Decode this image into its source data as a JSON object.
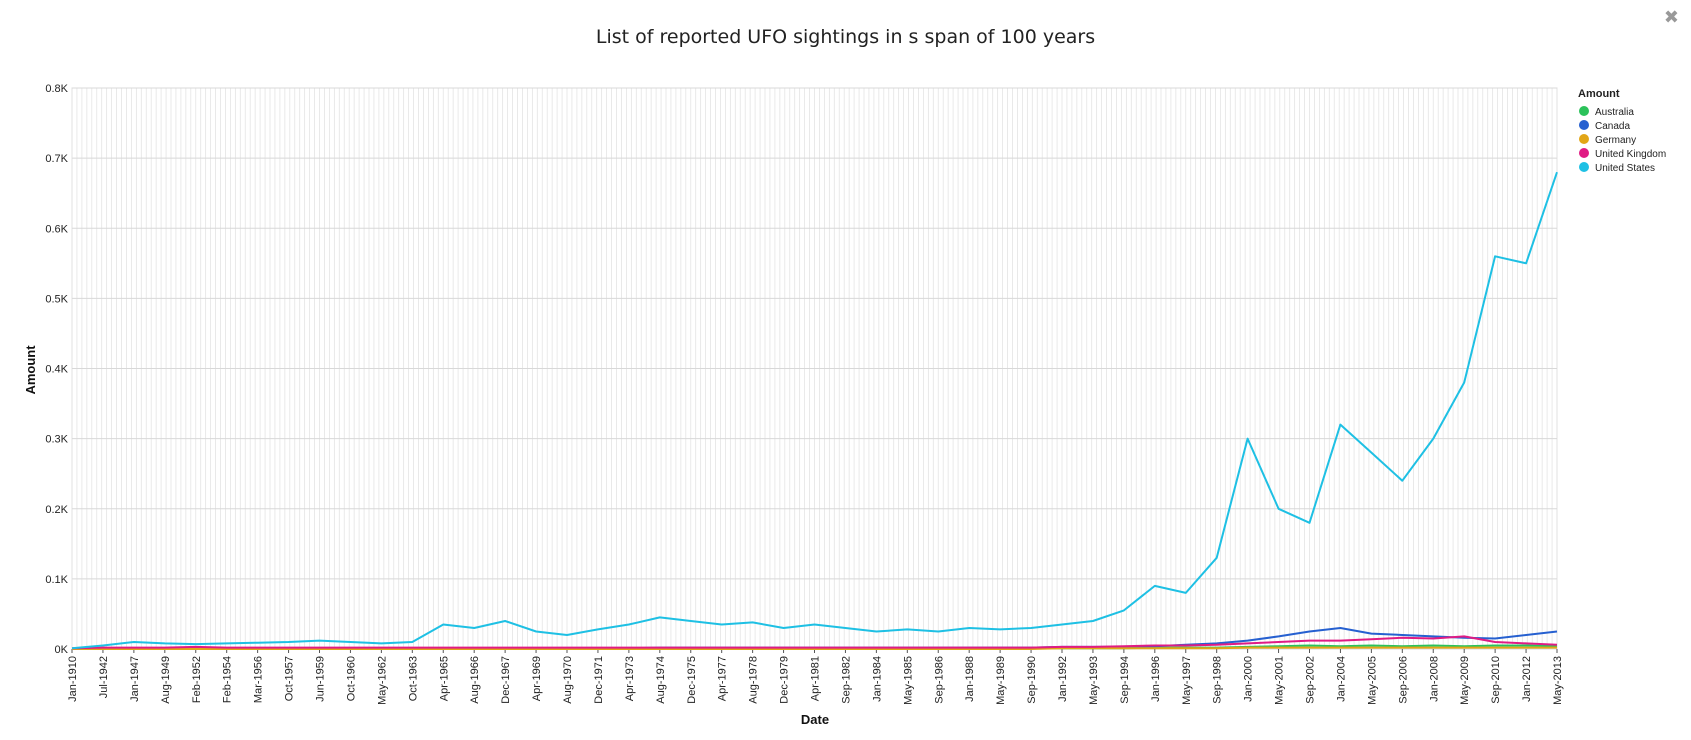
{
  "window": {
    "close_icon": "close-icon"
  },
  "chart_data": {
    "type": "line",
    "title": "List of reported UFO sightings in s span of 100 years",
    "xlabel": "Date",
    "ylabel": "Amount",
    "ylim": [
      0,
      800
    ],
    "yticks": [
      {
        "value": 0,
        "label": "0K"
      },
      {
        "value": 100,
        "label": "0.1K"
      },
      {
        "value": 200,
        "label": "0.2K"
      },
      {
        "value": 300,
        "label": "0.3K"
      },
      {
        "value": 400,
        "label": "0.4K"
      },
      {
        "value": 500,
        "label": "0.5K"
      },
      {
        "value": 600,
        "label": "0.6K"
      },
      {
        "value": 700,
        "label": "0.7K"
      },
      {
        "value": 800,
        "label": "0.8K"
      }
    ],
    "x": [
      "Jan-1910",
      "Jul-1942",
      "Jan-1947",
      "Aug-1949",
      "Feb-1952",
      "Feb-1954",
      "Mar-1956",
      "Oct-1957",
      "Jun-1959",
      "Oct-1960",
      "May-1962",
      "Oct-1963",
      "Apr-1965",
      "Aug-1966",
      "Dec-1967",
      "Apr-1969",
      "Aug-1970",
      "Dec-1971",
      "Apr-1973",
      "Aug-1974",
      "Dec-1975",
      "Apr-1977",
      "Aug-1978",
      "Dec-1979",
      "Apr-1981",
      "Sep-1982",
      "Jan-1984",
      "May-1985",
      "Sep-1986",
      "Jan-1988",
      "May-1989",
      "Sep-1990",
      "Jan-1992",
      "May-1993",
      "Sep-1994",
      "Jan-1996",
      "May-1997",
      "Sep-1998",
      "Jan-2000",
      "May-2001",
      "Sep-2002",
      "Jan-2004",
      "May-2005",
      "Sep-2006",
      "Jan-2008",
      "May-2009",
      "Sep-2010",
      "Jan-2012",
      "May-2013"
    ],
    "legend": {
      "title": "Amount",
      "position": "right"
    },
    "grid": true,
    "series": [
      {
        "name": "Australia",
        "color": "#2bc25a",
        "values": [
          0,
          0,
          0,
          0,
          0,
          0,
          0,
          0,
          0,
          0,
          0,
          0,
          0,
          0,
          0,
          0,
          0,
          0,
          0,
          0,
          0,
          0,
          0,
          0,
          0,
          0,
          0,
          0,
          0,
          0,
          1,
          1,
          1,
          1,
          1,
          2,
          2,
          2,
          3,
          4,
          5,
          4,
          5,
          4,
          5,
          4,
          5,
          5,
          4
        ]
      },
      {
        "name": "Canada",
        "color": "#2660d0",
        "values": [
          0,
          0,
          0,
          1,
          1,
          1,
          1,
          1,
          1,
          1,
          1,
          1,
          1,
          1,
          1,
          1,
          1,
          1,
          1,
          2,
          2,
          2,
          2,
          2,
          2,
          2,
          2,
          2,
          2,
          2,
          2,
          2,
          3,
          3,
          3,
          4,
          6,
          8,
          12,
          18,
          25,
          30,
          22,
          20,
          18,
          16,
          15,
          20,
          25
        ]
      },
      {
        "name": "Germany",
        "color": "#e2a617",
        "values": [
          0,
          0,
          0,
          0,
          0,
          0,
          0,
          0,
          0,
          0,
          0,
          0,
          0,
          0,
          0,
          0,
          0,
          0,
          0,
          0,
          0,
          0,
          0,
          0,
          0,
          0,
          0,
          0,
          0,
          0,
          0,
          0,
          1,
          1,
          1,
          1,
          1,
          1,
          2,
          2,
          2,
          2,
          2,
          2,
          2,
          2,
          2,
          2,
          2
        ]
      },
      {
        "name": "United Kingdom",
        "color": "#e01b84",
        "values": [
          1,
          2,
          2,
          2,
          3,
          2,
          2,
          2,
          2,
          2,
          2,
          2,
          2,
          2,
          2,
          2,
          2,
          2,
          2,
          2,
          2,
          2,
          2,
          2,
          2,
          2,
          2,
          2,
          2,
          2,
          2,
          2,
          3,
          3,
          4,
          5,
          5,
          6,
          8,
          10,
          12,
          12,
          14,
          16,
          15,
          18,
          10,
          8,
          6
        ]
      },
      {
        "name": "United States",
        "color": "#1ec0e4",
        "values": [
          1,
          5,
          10,
          8,
          7,
          8,
          9,
          10,
          12,
          10,
          8,
          10,
          35,
          30,
          40,
          25,
          20,
          28,
          35,
          45,
          40,
          35,
          38,
          30,
          35,
          30,
          25,
          28,
          25,
          30,
          28,
          30,
          35,
          40,
          55,
          90,
          80,
          130,
          300,
          200,
          180,
          320,
          280,
          240,
          300,
          380,
          560,
          550,
          680
        ]
      }
    ]
  }
}
